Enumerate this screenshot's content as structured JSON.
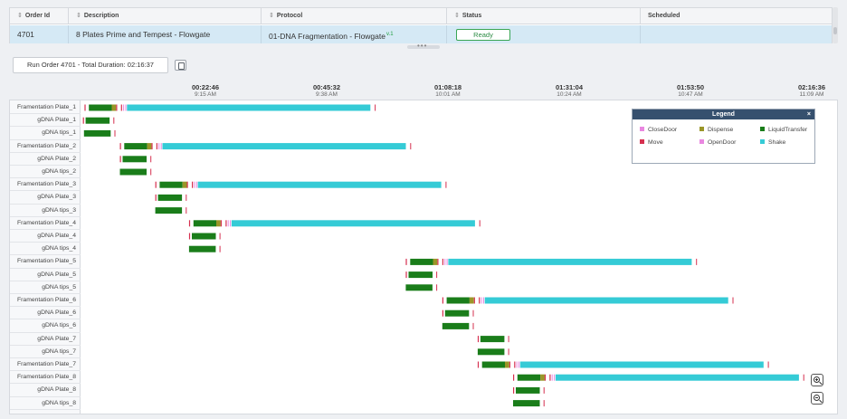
{
  "orders_table": {
    "columns": [
      {
        "label": "Order Id"
      },
      {
        "label": "Description"
      },
      {
        "label": "Protocol"
      },
      {
        "label": "Status"
      },
      {
        "label": "Scheduled"
      }
    ],
    "row": {
      "order_id": "4701",
      "description": "8 Plates Prime and Tempest - Flowgate",
      "protocol": "01-DNA Fragmentation - Flowgate",
      "protocol_version": "v.1",
      "status": "Ready",
      "scheduled": ""
    },
    "sort_icon": "sort-icon",
    "splitter_glyph": "•••"
  },
  "run": {
    "label": "Run Order 4701 - Total Duration: 02:16:37",
    "toggle_icon": "collapse-icon"
  },
  "timeline_axis": [
    {
      "time": "00:22:46",
      "clock": "9:15 AM"
    },
    {
      "time": "00:45:32",
      "clock": "9:38 AM"
    },
    {
      "time": "01:08:18",
      "clock": "10:01 AM"
    },
    {
      "time": "01:31:04",
      "clock": "10:24 AM"
    },
    {
      "time": "01:53:50",
      "clock": "10:47 AM"
    },
    {
      "time": "02:16:36",
      "clock": "11:09 AM"
    }
  ],
  "resources": [
    "Framentation Plate_1",
    "gDNA Plate_1",
    "gDNA tips_1",
    "Framentation Plate_2",
    "gDNA Plate_2",
    "gDNA tips_2",
    "Framentation Plate_3",
    "gDNA Plate_3",
    "gDNA tips_3",
    "Framentation Plate_4",
    "gDNA Plate_4",
    "gDNA tips_4",
    "Framentation Plate_5",
    "gDNA Plate_5",
    "gDNA tips_5",
    "Framentation Plate_6",
    "gDNA Plate_6",
    "gDNA tips_6",
    "gDNA Plate_7",
    "gDNA tips_7",
    "Framentation Plate_7",
    "Framentation Plate_8",
    "gDNA Plate_8",
    "gDNA tips_8"
  ],
  "legend": {
    "title": "Legend",
    "close_glyph": "×",
    "items": [
      {
        "name": "CloseDoor",
        "color": "#e987e0"
      },
      {
        "name": "Dispense",
        "color": "#9a9628"
      },
      {
        "name": "LiquidTransfer",
        "color": "#1a7d1a"
      },
      {
        "name": "Move",
        "color": "#d6304f"
      },
      {
        "name": "OpenDoor",
        "color": "#e987e0"
      },
      {
        "name": "Shake",
        "color": "#35cbd6"
      }
    ]
  },
  "chart_data": {
    "type": "gantt",
    "time_unit": "minutes",
    "total_duration": "02:16:37",
    "axis_ticks_minutes": [
      22.77,
      45.53,
      68.3,
      91.07,
      113.83,
      136.6
    ],
    "colors": {
      "Move": "#d6304f",
      "LiquidTransfer": "#1a7d1a",
      "Dispense": "#9a9628",
      "OpenDoor": "#e987e0",
      "CloseDoor": "#e987e0",
      "Shake": "#35cbd6"
    },
    "rows": [
      {
        "name": "Framentation Plate_1",
        "kind": "frag",
        "start": 0.4
      },
      {
        "name": "gDNA Plate_1",
        "kind": "plate",
        "start": 0.1
      },
      {
        "name": "gDNA tips_1",
        "kind": "tips",
        "start": 0.3
      },
      {
        "name": "Framentation Plate_2",
        "kind": "frag",
        "start": 6.9
      },
      {
        "name": "gDNA Plate_2",
        "kind": "plate",
        "start": 6.9
      },
      {
        "name": "gDNA tips_2",
        "kind": "tips",
        "start": 6.9
      },
      {
        "name": "Framentation Plate_3",
        "kind": "frag",
        "start": 13.4
      },
      {
        "name": "gDNA Plate_3",
        "kind": "plate",
        "start": 13.4
      },
      {
        "name": "gDNA tips_3",
        "kind": "tips",
        "start": 13.4
      },
      {
        "name": "Framentation Plate_4",
        "kind": "frag",
        "start": 19.6
      },
      {
        "name": "gDNA Plate_4",
        "kind": "plate",
        "start": 19.6
      },
      {
        "name": "gDNA tips_4",
        "kind": "tips",
        "start": 19.6
      },
      {
        "name": "Framentation Plate_5",
        "kind": "frag",
        "start": 59.4
      },
      {
        "name": "gDNA Plate_5",
        "kind": "plate",
        "start": 59.4
      },
      {
        "name": "gDNA tips_5",
        "kind": "tips",
        "start": 59.4
      },
      {
        "name": "Framentation Plate_6",
        "kind": "frag",
        "start": 66.1
      },
      {
        "name": "gDNA Plate_6",
        "kind": "plate",
        "start": 66.1
      },
      {
        "name": "gDNA tips_6",
        "kind": "tips",
        "start": 66.1
      },
      {
        "name": "gDNA Plate_7",
        "kind": "plate",
        "start": 72.6
      },
      {
        "name": "gDNA tips_7",
        "kind": "tips",
        "start": 72.6
      },
      {
        "name": "Framentation Plate_7",
        "kind": "frag",
        "start": 72.6
      },
      {
        "name": "Framentation Plate_8",
        "kind": "frag",
        "start": 79.1
      },
      {
        "name": "gDNA Plate_8",
        "kind": "plate",
        "start": 79.1
      },
      {
        "name": "gDNA tips_8",
        "kind": "tips",
        "start": 79.1
      }
    ]
  },
  "zoom": {
    "zoom_in_icon": "zoom-in-icon",
    "zoom_out_icon": "zoom-out-icon"
  }
}
